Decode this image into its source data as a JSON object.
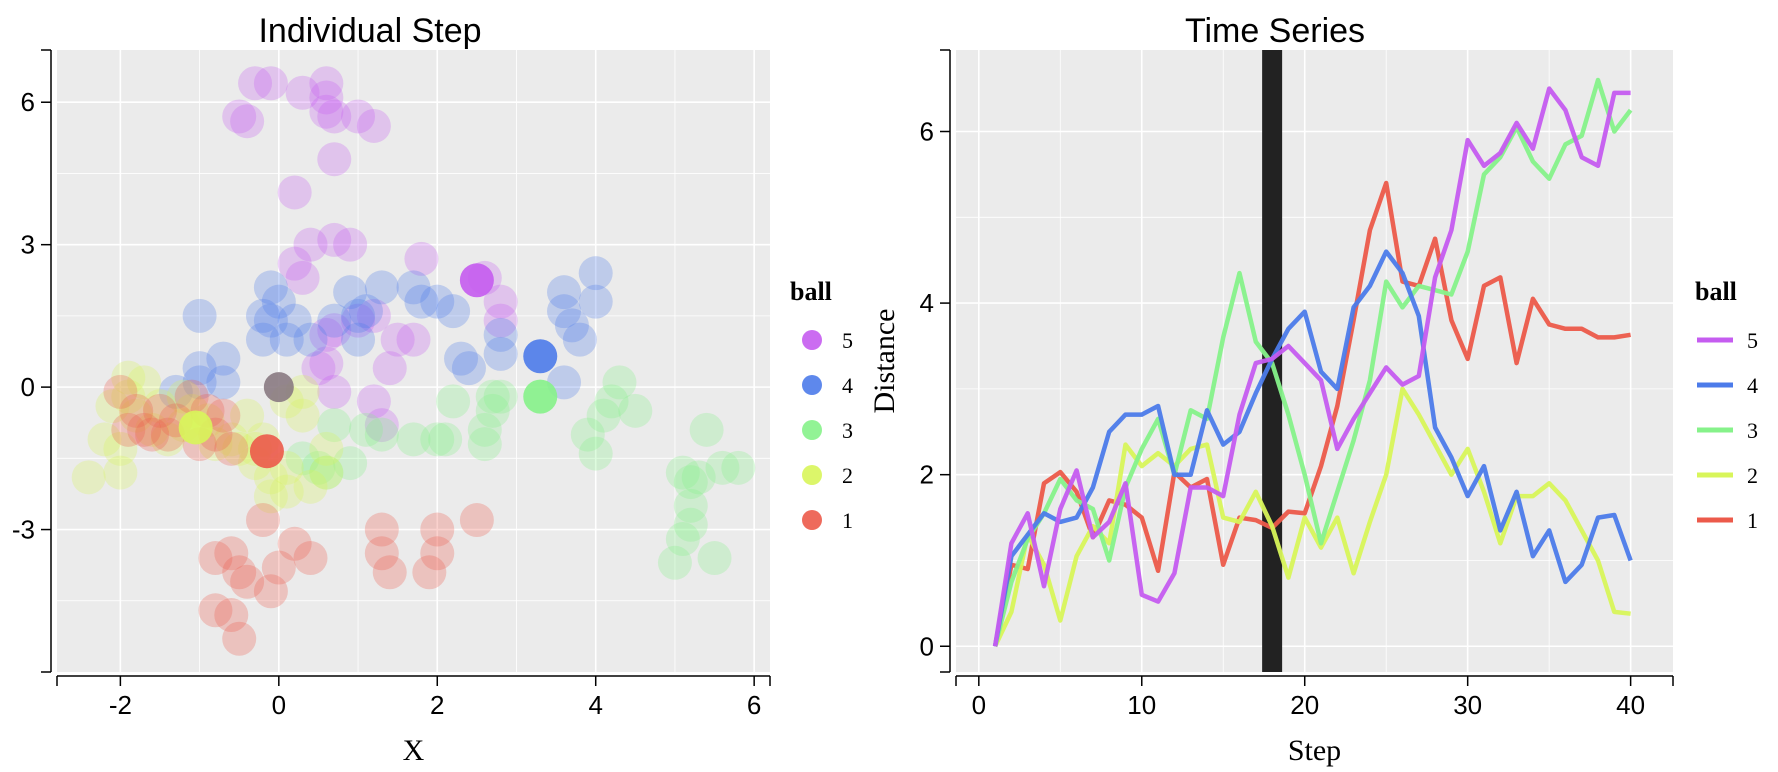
{
  "chart_data": [
    {
      "type": "scatter",
      "title": "Individual Step",
      "xlabel": "X",
      "ylabel": "",
      "xlim": [
        -2.8,
        6.2
      ],
      "ylim": [
        -6.0,
        7.1
      ],
      "xticks": [
        -2,
        0,
        2,
        4,
        6
      ],
      "yticks": [
        -3,
        0,
        3,
        6
      ],
      "xtick_labels": [
        "-2",
        "0",
        "2",
        "4",
        "6"
      ],
      "ytick_labels": [
        "-3",
        "0",
        "3",
        "6"
      ],
      "grid": true,
      "legend_title": "ball",
      "legend_position": "right",
      "series": [
        {
          "name": "5",
          "color": "#c55cf0",
          "points": [
            [
              -0.3,
              6.4
            ],
            [
              -0.1,
              6.4
            ],
            [
              0.3,
              6.2
            ],
            [
              0.6,
              6.4
            ],
            [
              0.6,
              6.1
            ],
            [
              0.6,
              5.8
            ],
            [
              0.7,
              5.7
            ],
            [
              1.0,
              5.7
            ],
            [
              1.2,
              5.5
            ],
            [
              -0.5,
              5.7
            ],
            [
              -0.4,
              5.6
            ],
            [
              0.7,
              4.8
            ],
            [
              0.2,
              4.1
            ],
            [
              0.4,
              3.0
            ],
            [
              0.7,
              3.1
            ],
            [
              0.9,
              3.0
            ],
            [
              0.2,
              2.6
            ],
            [
              0.3,
              2.3
            ],
            [
              1.8,
              2.7
            ],
            [
              2.6,
              2.3
            ],
            [
              2.8,
              1.8
            ],
            [
              2.8,
              1.4
            ],
            [
              1.0,
              1.4
            ],
            [
              1.2,
              1.5
            ],
            [
              0.6,
              1.1
            ],
            [
              0.7,
              1.2
            ],
            [
              1.5,
              1.0
            ],
            [
              1.7,
              1.0
            ],
            [
              0.5,
              0.4
            ],
            [
              0.6,
              0.5
            ],
            [
              0.7,
              -0.1
            ],
            [
              1.4,
              0.4
            ],
            [
              1.2,
              -0.3
            ],
            [
              1.3,
              -0.8
            ]
          ],
          "current": [
            2.5,
            2.25
          ]
        },
        {
          "name": "4",
          "color": "#4c7bea",
          "points": [
            [
              -1.0,
              1.5
            ],
            [
              -0.1,
              2.1
            ],
            [
              -0.2,
              1.5
            ],
            [
              -0.1,
              1.4
            ],
            [
              0.0,
              1.8
            ],
            [
              0.2,
              1.4
            ],
            [
              0.1,
              1.0
            ],
            [
              0.4,
              1.0
            ],
            [
              0.7,
              1.4
            ],
            [
              1.0,
              1.5
            ],
            [
              1.0,
              1.0
            ],
            [
              1.1,
              1.6
            ],
            [
              1.3,
              2.1
            ],
            [
              1.7,
              2.1
            ],
            [
              1.8,
              1.8
            ],
            [
              2.0,
              1.8
            ],
            [
              2.2,
              1.6
            ],
            [
              0.9,
              2.0
            ],
            [
              -0.2,
              1.0
            ],
            [
              -1.0,
              0.4
            ],
            [
              -1.0,
              0.1
            ],
            [
              -0.7,
              0.6
            ],
            [
              -0.7,
              0.1
            ],
            [
              -1.3,
              -0.1
            ],
            [
              2.3,
              0.6
            ],
            [
              2.4,
              0.4
            ],
            [
              2.8,
              0.7
            ],
            [
              2.8,
              1.1
            ],
            [
              3.6,
              2.0
            ],
            [
              3.6,
              1.6
            ],
            [
              3.7,
              1.3
            ],
            [
              3.8,
              1.0
            ],
            [
              4.0,
              2.4
            ],
            [
              4.0,
              1.8
            ],
            [
              3.6,
              0.1
            ]
          ],
          "current": [
            3.3,
            0.65
          ]
        },
        {
          "name": "3",
          "color": "#86f28a",
          "points": [
            [
              2.2,
              -0.3
            ],
            [
              2.7,
              -0.2
            ],
            [
              2.7,
              -0.5
            ],
            [
              2.8,
              -0.2
            ],
            [
              2.6,
              -0.9
            ],
            [
              2.6,
              -1.2
            ],
            [
              2.0,
              -1.1
            ],
            [
              2.1,
              -1.1
            ],
            [
              1.7,
              -1.1
            ],
            [
              1.3,
              -1.0
            ],
            [
              1.1,
              -0.9
            ],
            [
              0.7,
              -0.8
            ],
            [
              0.3,
              -1.5
            ],
            [
              0.5,
              -1.7
            ],
            [
              0.6,
              -1.8
            ],
            [
              0.9,
              -1.6
            ],
            [
              4.3,
              0.1
            ],
            [
              4.2,
              -0.3
            ],
            [
              4.1,
              -0.6
            ],
            [
              4.5,
              -0.5
            ],
            [
              3.9,
              -1.0
            ],
            [
              4.0,
              -1.4
            ],
            [
              5.4,
              -0.9
            ],
            [
              5.1,
              -1.8
            ],
            [
              5.2,
              -2.0
            ],
            [
              5.3,
              -1.9
            ],
            [
              5.6,
              -1.7
            ],
            [
              5.8,
              -1.7
            ],
            [
              5.2,
              -2.5
            ],
            [
              5.2,
              -2.9
            ],
            [
              5.1,
              -3.2
            ],
            [
              5.0,
              -3.7
            ],
            [
              5.5,
              -3.6
            ]
          ],
          "current": [
            3.3,
            -0.2
          ]
        },
        {
          "name": "2",
          "color": "#d8f55a",
          "points": [
            [
              -2.4,
              -1.9
            ],
            [
              -2.0,
              -1.8
            ],
            [
              -1.9,
              0.2
            ],
            [
              -1.7,
              0.1
            ],
            [
              -1.8,
              -0.6
            ],
            [
              -1.6,
              -0.9
            ],
            [
              -1.4,
              -1.1
            ],
            [
              -1.5,
              -0.4
            ],
            [
              -1.2,
              -0.2
            ],
            [
              -1.2,
              -0.8
            ],
            [
              -1.1,
              -0.5
            ],
            [
              -0.9,
              -0.7
            ],
            [
              -0.8,
              -1.2
            ],
            [
              -0.6,
              -1.1
            ],
            [
              -0.5,
              -1.3
            ],
            [
              -0.3,
              -1.3
            ],
            [
              -0.2,
              -1.1
            ],
            [
              -0.4,
              -0.6
            ],
            [
              0.1,
              -0.3
            ],
            [
              0.3,
              -0.6
            ],
            [
              -0.3,
              -1.6
            ],
            [
              -0.1,
              -1.9
            ],
            [
              0.1,
              -1.7
            ],
            [
              -0.1,
              -2.3
            ],
            [
              0.1,
              -2.2
            ],
            [
              0.4,
              -2.1
            ],
            [
              0.6,
              -1.8
            ],
            [
              -2.1,
              -0.4
            ],
            [
              -1.9,
              -0.2
            ],
            [
              -2.2,
              -1.1
            ],
            [
              -2.0,
              -1.3
            ],
            [
              0.3,
              -0.1
            ],
            [
              0.6,
              -1.3
            ]
          ],
          "current": [
            -1.05,
            -0.85
          ]
        },
        {
          "name": "1",
          "color": "#ec5a4a",
          "points": [
            [
              -2.0,
              -0.1
            ],
            [
              -1.8,
              -0.5
            ],
            [
              -1.7,
              -0.9
            ],
            [
              -1.5,
              -0.5
            ],
            [
              -1.4,
              -1.0
            ],
            [
              -1.3,
              -0.7
            ],
            [
              -1.1,
              -0.2
            ],
            [
              -1.0,
              -1.2
            ],
            [
              -0.9,
              -0.5
            ],
            [
              -0.8,
              -1.0
            ],
            [
              -0.7,
              -0.6
            ],
            [
              -0.6,
              -1.3
            ],
            [
              -0.8,
              -3.6
            ],
            [
              -0.6,
              -3.5
            ],
            [
              -0.5,
              -3.9
            ],
            [
              -0.4,
              -4.1
            ],
            [
              -0.2,
              -2.8
            ],
            [
              0.0,
              -3.8
            ],
            [
              -0.1,
              -4.3
            ],
            [
              0.2,
              -3.3
            ],
            [
              0.4,
              -3.6
            ],
            [
              -0.8,
              -4.7
            ],
            [
              -0.5,
              -5.3
            ],
            [
              -0.6,
              -4.8
            ],
            [
              1.3,
              -3.0
            ],
            [
              1.3,
              -3.5
            ],
            [
              1.4,
              -3.9
            ],
            [
              2.0,
              -3.0
            ],
            [
              2.0,
              -3.5
            ],
            [
              1.9,
              -3.9
            ],
            [
              2.5,
              -2.8
            ],
            [
              -1.9,
              -0.9
            ],
            [
              -1.6,
              -1.0
            ]
          ],
          "current": [
            -0.15,
            -1.35
          ]
        }
      ],
      "marker": {
        "color": "#8a7a82",
        "x": 0.0,
        "y": 0.0
      }
    },
    {
      "type": "line",
      "title": "Time Series",
      "xlabel": "Step",
      "ylabel": "Distance",
      "xlim": [
        -1.4,
        42.6
      ],
      "ylim": [
        -0.3,
        6.95
      ],
      "xticks": [
        0,
        10,
        20,
        30,
        40
      ],
      "yticks": [
        0,
        2,
        4,
        6
      ],
      "xtick_labels": [
        "0",
        "10",
        "20",
        "30",
        "40"
      ],
      "ytick_labels": [
        "0",
        "2",
        "4",
        "6"
      ],
      "grid": true,
      "legend_title": "ball",
      "legend_position": "right",
      "current_step": 18,
      "x": [
        1,
        2,
        3,
        4,
        5,
        6,
        7,
        8,
        9,
        10,
        11,
        12,
        13,
        14,
        15,
        16,
        17,
        18,
        19,
        20,
        21,
        22,
        23,
        24,
        25,
        26,
        27,
        28,
        29,
        30,
        31,
        32,
        33,
        34,
        35,
        36,
        37,
        38,
        39,
        40
      ],
      "series": [
        {
          "name": "1",
          "color": "#ec5a4a",
          "values": [
            0,
            0.95,
            0.9,
            1.9,
            2.03,
            1.8,
            1.27,
            1.7,
            1.65,
            1.5,
            0.88,
            2.03,
            1.85,
            1.95,
            0.95,
            1.5,
            1.47,
            1.38,
            1.57,
            1.55,
            2.1,
            2.8,
            3.8,
            4.85,
            5.4,
            4.25,
            4.2,
            4.75,
            3.8,
            3.35,
            4.2,
            4.3,
            3.3,
            4.05,
            3.75,
            3.7,
            3.7,
            3.6,
            3.6,
            3.63
          ]
        },
        {
          "name": "2",
          "color": "#d8f55a",
          "values": [
            0,
            0.4,
            1.3,
            0.95,
            0.3,
            1.05,
            1.4,
            1.2,
            2.35,
            2.1,
            2.25,
            2.1,
            2.3,
            2.35,
            1.5,
            1.45,
            1.8,
            1.4,
            0.8,
            1.5,
            1.15,
            1.5,
            0.85,
            1.45,
            2.0,
            3.0,
            2.7,
            2.35,
            2.0,
            2.3,
            1.8,
            1.2,
            1.75,
            1.75,
            1.9,
            1.7,
            1.35,
            1.0,
            0.4,
            0.38
          ]
        },
        {
          "name": "3",
          "color": "#86f28a",
          "values": [
            0,
            0.75,
            1.25,
            1.55,
            1.95,
            1.7,
            1.6,
            1.0,
            1.85,
            2.3,
            2.65,
            2.0,
            2.75,
            2.65,
            3.6,
            4.35,
            3.55,
            3.3,
            2.7,
            2.0,
            1.2,
            1.8,
            2.4,
            3.1,
            4.25,
            3.95,
            4.2,
            4.15,
            4.1,
            4.6,
            5.5,
            5.7,
            6.05,
            5.65,
            5.45,
            5.85,
            5.95,
            6.6,
            6.0,
            6.25
          ]
        },
        {
          "name": "4",
          "color": "#4c7bea",
          "values": [
            0,
            1.05,
            1.3,
            1.55,
            1.45,
            1.5,
            1.85,
            2.5,
            2.7,
            2.7,
            2.8,
            2.0,
            2.0,
            2.75,
            2.35,
            2.5,
            2.95,
            3.35,
            3.7,
            3.9,
            3.2,
            3.0,
            3.95,
            4.2,
            4.6,
            4.35,
            3.85,
            2.55,
            2.2,
            1.75,
            2.1,
            1.35,
            1.8,
            1.05,
            1.35,
            0.75,
            0.95,
            1.5,
            1.53,
            1.0
          ]
        },
        {
          "name": "5",
          "color": "#c55cf0",
          "values": [
            0,
            1.2,
            1.55,
            0.7,
            1.6,
            2.05,
            1.27,
            1.45,
            1.9,
            0.6,
            0.52,
            0.85,
            1.85,
            1.85,
            1.75,
            2.7,
            3.3,
            3.35,
            3.5,
            3.3,
            3.1,
            2.3,
            2.65,
            2.95,
            3.25,
            3.05,
            3.15,
            4.3,
            4.85,
            5.9,
            5.6,
            5.75,
            6.1,
            5.8,
            6.5,
            6.25,
            5.7,
            5.6,
            6.45,
            6.45
          ]
        }
      ]
    }
  ]
}
